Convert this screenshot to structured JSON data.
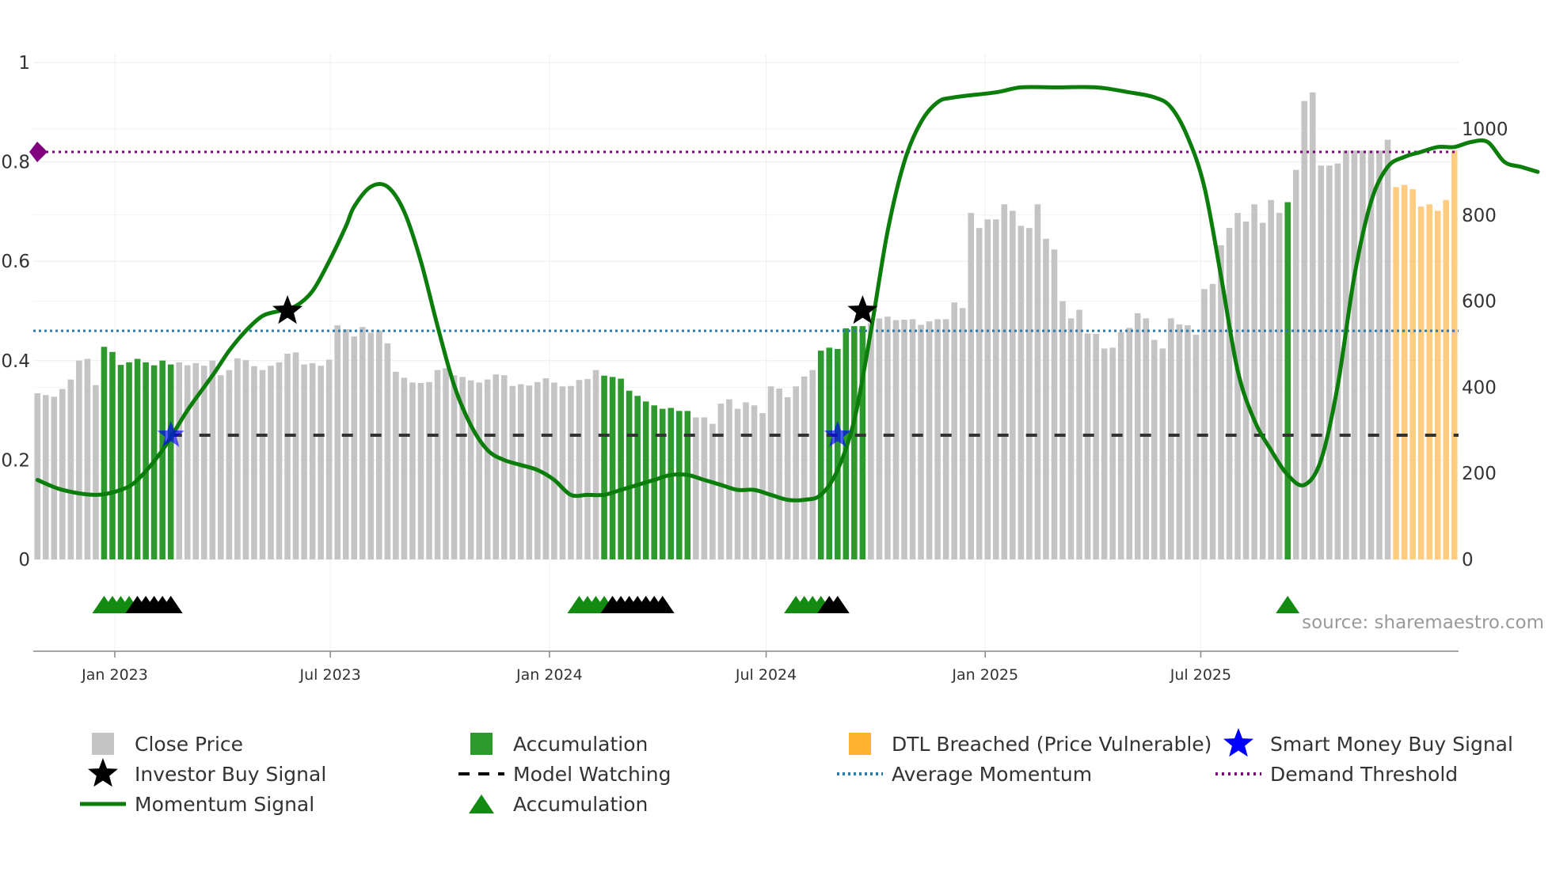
{
  "chart_data": {
    "type": "bar",
    "title": "",
    "source": "source: sharemaestro.com",
    "left_axis": {
      "ticks": [
        0,
        0.2,
        0.4,
        0.6,
        0.8,
        1
      ],
      "tick_labels": [
        "0",
        "0.2",
        "0.4",
        "0.6",
        "0.8",
        "1"
      ],
      "ylim": [
        0,
        1
      ]
    },
    "right_axis": {
      "ticks": [
        0,
        200,
        400,
        600,
        800,
        1000
      ],
      "tick_labels": [
        "0",
        "200",
        "400",
        "600",
        "800",
        "1000"
      ],
      "ylim": [
        0,
        1155
      ]
    },
    "x_axis": {
      "start": "2022-10-28",
      "end": "2025-10-24",
      "step_days": 7,
      "tick_dates": [
        "2023-01-01",
        "2023-07-01",
        "2024-01-01",
        "2024-07-01",
        "2025-01-01",
        "2025-07-01"
      ],
      "tick_labels": [
        "Jan 2023",
        "Jul 2023",
        "Jan 2024",
        "Jul 2024",
        "Jan 2025",
        "Jul 2025"
      ]
    },
    "close_price": [
      386,
      382,
      378,
      396,
      418,
      462,
      466,
      405,
      494,
      482,
      452,
      458,
      466,
      458,
      451,
      462,
      453,
      458,
      451,
      456,
      450,
      462,
      428,
      440,
      467,
      463,
      449,
      440,
      450,
      458,
      478,
      481,
      453,
      456,
      450,
      464,
      544,
      535,
      518,
      540,
      527,
      532,
      502,
      436,
      422,
      411,
      410,
      412,
      440,
      444,
      428,
      424,
      416,
      411,
      418,
      430,
      428,
      403,
      407,
      404,
      412,
      421,
      411,
      402,
      403,
      417,
      419,
      440,
      427,
      424,
      420,
      392,
      380,
      367,
      358,
      350,
      352,
      345,
      345,
      330,
      330,
      315,
      362,
      372,
      350,
      365,
      358,
      340,
      402,
      397,
      377,
      402,
      425,
      440,
      485,
      492,
      489,
      537,
      542,
      542,
      549,
      560,
      564,
      556,
      557,
      558,
      545,
      553,
      558,
      558,
      597,
      584,
      805,
      770,
      790,
      790,
      825,
      810,
      775,
      770,
      825,
      745,
      720,
      600,
      560,
      580,
      525,
      524,
      490,
      492,
      528,
      538,
      572,
      560,
      510,
      490,
      560,
      546,
      544,
      522,
      628,
      640,
      730,
      770,
      805,
      785,
      825,
      782,
      835,
      805,
      830,
      905,
      1065,
      1085,
      915,
      915,
      920,
      950,
      950,
      950,
      950,
      950,
      975,
      865,
      870,
      860,
      820,
      825,
      810,
      835,
      950
    ],
    "zones": [
      {
        "type": "accumulation",
        "start": 8,
        "end": 16
      },
      {
        "type": "accumulation",
        "start": 68,
        "end": 78
      },
      {
        "type": "accumulation",
        "start": 94,
        "end": 99
      },
      {
        "type": "accumulation",
        "start": 150,
        "end": 150
      },
      {
        "type": "dtl_breached",
        "start": 163,
        "end": 170
      }
    ],
    "momentum": [
      [
        0,
        0.16
      ],
      [
        3,
        0.14
      ],
      [
        7,
        0.13
      ],
      [
        10,
        0.14
      ],
      [
        12,
        0.16
      ],
      [
        15,
        0.22
      ],
      [
        18,
        0.3
      ],
      [
        21,
        0.37
      ],
      [
        23,
        0.42
      ],
      [
        25,
        0.46
      ],
      [
        27,
        0.49
      ],
      [
        29,
        0.5
      ],
      [
        31,
        0.51
      ],
      [
        33,
        0.54
      ],
      [
        35,
        0.6
      ],
      [
        37,
        0.67
      ],
      [
        38,
        0.71
      ],
      [
        40,
        0.75
      ],
      [
        42,
        0.75
      ],
      [
        44,
        0.7
      ],
      [
        46,
        0.6
      ],
      [
        48,
        0.47
      ],
      [
        50,
        0.35
      ],
      [
        52,
        0.27
      ],
      [
        54,
        0.22
      ],
      [
        56,
        0.2
      ],
      [
        58,
        0.19
      ],
      [
        60,
        0.18
      ],
      [
        62,
        0.16
      ],
      [
        64,
        0.13
      ],
      [
        66,
        0.13
      ],
      [
        68,
        0.13
      ],
      [
        70,
        0.14
      ],
      [
        72,
        0.15
      ],
      [
        74,
        0.16
      ],
      [
        76,
        0.17
      ],
      [
        78,
        0.17
      ],
      [
        80,
        0.16
      ],
      [
        82,
        0.15
      ],
      [
        84,
        0.14
      ],
      [
        86,
        0.14
      ],
      [
        88,
        0.13
      ],
      [
        90,
        0.12
      ],
      [
        92,
        0.12
      ],
      [
        94,
        0.13
      ],
      [
        96,
        0.18
      ],
      [
        98,
        0.28
      ],
      [
        100,
        0.46
      ],
      [
        102,
        0.66
      ],
      [
        104,
        0.8
      ],
      [
        106,
        0.88
      ],
      [
        108,
        0.92
      ],
      [
        110,
        0.93
      ],
      [
        115,
        0.94
      ],
      [
        118,
        0.95
      ],
      [
        122,
        0.95
      ],
      [
        127,
        0.95
      ],
      [
        131,
        0.94
      ],
      [
        134,
        0.93
      ],
      [
        136,
        0.91
      ],
      [
        138,
        0.85
      ],
      [
        140,
        0.75
      ],
      [
        142,
        0.57
      ],
      [
        144,
        0.38
      ],
      [
        146,
        0.28
      ],
      [
        148,
        0.22
      ],
      [
        150,
        0.17
      ],
      [
        152,
        0.15
      ],
      [
        154,
        0.2
      ],
      [
        156,
        0.35
      ],
      [
        158,
        0.57
      ],
      [
        160,
        0.72
      ],
      [
        162,
        0.79
      ],
      [
        164,
        0.81
      ],
      [
        166,
        0.82
      ],
      [
        168,
        0.83
      ],
      [
        170,
        0.83
      ],
      [
        172,
        0.84
      ],
      [
        174,
        0.84
      ],
      [
        176,
        0.8
      ],
      [
        178,
        0.79
      ],
      [
        180,
        0.78
      ]
    ],
    "investor_buy_signals": [
      [
        30,
        0.5
      ],
      [
        99,
        0.5
      ]
    ],
    "smart_money_signals": [
      [
        16,
        0.25
      ],
      [
        96,
        0.25
      ]
    ],
    "model_watching_level": 0.25,
    "model_watching_from": 16,
    "average_momentum": 0.46,
    "demand_threshold": 0.82,
    "signal_markers": [
      {
        "color": "green",
        "idx": [
          8,
          9,
          10,
          11
        ]
      },
      {
        "color": "black",
        "idx": [
          12,
          13,
          14,
          15,
          16
        ]
      },
      {
        "color": "green",
        "idx": [
          65,
          66,
          67,
          68
        ]
      },
      {
        "color": "black",
        "idx": [
          69,
          70,
          71,
          72,
          73,
          74,
          75
        ]
      },
      {
        "color": "green",
        "idx": [
          91,
          92,
          93,
          94
        ]
      },
      {
        "color": "black",
        "idx": [
          95,
          96
        ]
      },
      {
        "color": "green",
        "idx": [
          150
        ]
      }
    ],
    "colors": {
      "close": "#c4c4c4",
      "accumulation": "#2e9a2e",
      "dtl": "#ffcc80",
      "momentum": "#0b7d0b",
      "avg": "#2a7ab0",
      "threshold": "#800080",
      "watch": "#333333",
      "smart": "#0000ff",
      "investor": "#000000",
      "tri_green": "#138b13",
      "tri_black": "#000000"
    },
    "legend": [
      {
        "key": "close",
        "label": "Close Price"
      },
      {
        "key": "accum_bar",
        "label": "Accumulation"
      },
      {
        "key": "dtl",
        "label": "DTL Breached (Price Vulnerable)"
      },
      {
        "key": "smart",
        "label": "Smart Money Buy Signal"
      },
      {
        "key": "investor",
        "label": "Investor Buy Signal"
      },
      {
        "key": "watch",
        "label": "Model Watching"
      },
      {
        "key": "avg",
        "label": "Average Momentum"
      },
      {
        "key": "threshold",
        "label": "Demand Threshold"
      },
      {
        "key": "momentum",
        "label": "Momentum Signal"
      },
      {
        "key": "accum_tri",
        "label": "Accumulation"
      }
    ]
  }
}
